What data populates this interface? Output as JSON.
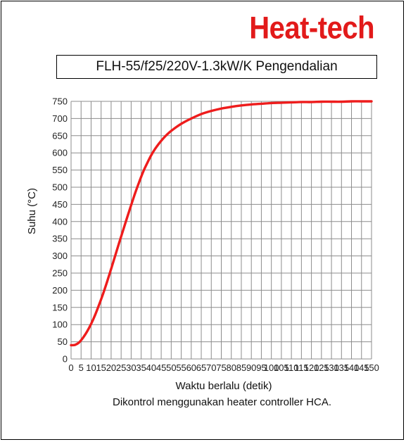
{
  "brand": "Heat-tech",
  "caption": "Dikontrol menggunakan heater controller HCA.",
  "colors": {
    "brand": "#e21a1a",
    "series": "#ee1c1c",
    "grid": "#8c8c8c"
  },
  "chart_data": {
    "type": "line",
    "title": "FLH-55/f25/220V-1.3kW/K Pengendalian",
    "xlabel": "Waktu berlalu (detik)",
    "ylabel": "Suhu (°C)",
    "xlim": [
      0,
      150
    ],
    "ylim": [
      0,
      750
    ],
    "xticks": [
      0,
      5,
      10,
      15,
      20,
      25,
      30,
      35,
      40,
      45,
      50,
      55,
      60,
      65,
      70,
      75,
      80,
      85,
      90,
      95,
      100,
      105,
      110,
      115,
      120,
      125,
      130,
      135,
      140,
      145,
      150
    ],
    "yticks": [
      0,
      50,
      100,
      150,
      200,
      250,
      300,
      350,
      400,
      450,
      500,
      550,
      600,
      650,
      700,
      750
    ],
    "grid": true,
    "series": [
      {
        "x": [
          0,
          2,
          4,
          6,
          8,
          10,
          12,
          14,
          16,
          18,
          20,
          22,
          24,
          26,
          28,
          30,
          32,
          34,
          36,
          38,
          40,
          42,
          44,
          46,
          48,
          50,
          53,
          56,
          60,
          65,
          70,
          75,
          80,
          85,
          90,
          95,
          100,
          105,
          110,
          115,
          120,
          125,
          130,
          135,
          140,
          145,
          150
        ],
        "values": [
          40,
          41,
          48,
          62,
          80,
          102,
          128,
          158,
          190,
          225,
          262,
          300,
          338,
          375,
          412,
          448,
          483,
          515,
          545,
          570,
          593,
          612,
          628,
          642,
          654,
          664,
          677,
          688,
          700,
          713,
          722,
          729,
          734,
          738,
          741,
          743,
          745,
          746,
          747,
          748,
          748,
          749,
          749,
          749,
          750,
          750,
          750
        ]
      }
    ]
  }
}
